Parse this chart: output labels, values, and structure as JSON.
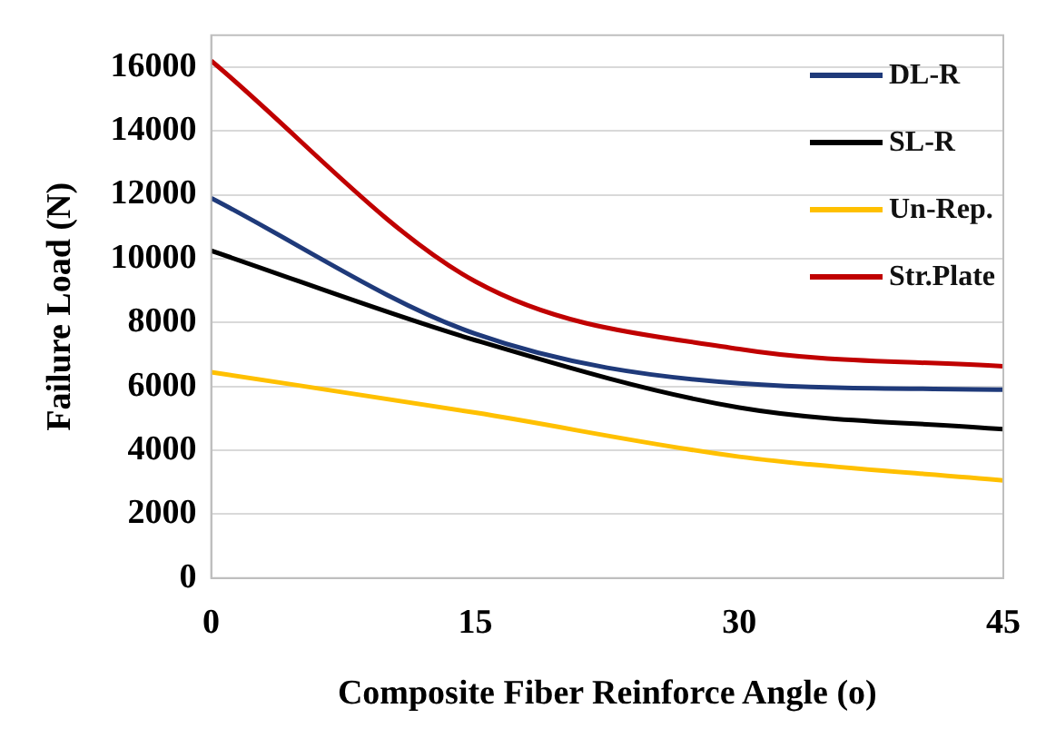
{
  "chart_data": {
    "type": "line",
    "xlabel": "Composite Fiber Reinforce Angle (o)",
    "ylabel": "Failure Load (N)",
    "x": [
      0,
      15,
      30,
      45
    ],
    "series": [
      {
        "name": "DL-R",
        "color": "#1f3a7a",
        "values": [
          11900,
          7650,
          6100,
          5900
        ]
      },
      {
        "name": "SL-R",
        "color": "#000000",
        "values": [
          10250,
          7450,
          5340,
          4660
        ]
      },
      {
        "name": "Un-Rep.",
        "color": "#ffc000",
        "values": [
          6450,
          5180,
          3800,
          3060
        ]
      },
      {
        "name": "Str.Plate",
        "color": "#c00000",
        "values": [
          16200,
          9290,
          7170,
          6630
        ]
      }
    ],
    "xlim": [
      0,
      45
    ],
    "xticks": [
      0,
      15,
      30,
      45
    ],
    "ylim": [
      0,
      17000
    ],
    "yticks": [
      0,
      2000,
      4000,
      6000,
      8000,
      10000,
      12000,
      14000,
      16000
    ],
    "grid": "y",
    "legend": "top right",
    "marker": "none",
    "line_style": "solid"
  }
}
